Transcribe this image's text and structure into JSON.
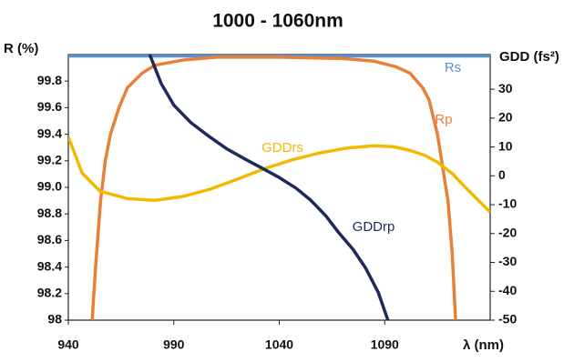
{
  "chart_data": {
    "type": "line",
    "title": "1000 - 1060nm",
    "x_label": "λ (nm)",
    "y_label": "R (%)",
    "y2_label": "GDD (fs²)",
    "xlim": [
      940,
      1140
    ],
    "xticks": [
      940,
      990,
      1040,
      1090
    ],
    "ylim": [
      98,
      100
    ],
    "yticks": [
      98,
      98.2,
      98.4,
      98.6,
      98.8,
      {
        "value": 99,
        "label": "99.0"
      },
      99.2,
      99.4,
      99.6,
      99.8
    ],
    "y2lim": [
      -50,
      42
    ],
    "y2ticks": [
      -50,
      -40,
      -30,
      -20,
      -10,
      0,
      10,
      20,
      30
    ],
    "series": [
      {
        "name": "Rs",
        "color": "#5b8fd0",
        "x": [
          940,
          990,
          1040,
          1090,
          1140
        ],
        "values": [
          99.99,
          99.99,
          99.99,
          99.99,
          99.99
        ]
      },
      {
        "name": "Rp",
        "color": "#e8803a",
        "x": [
          951.3,
          953,
          955.3,
          957.5,
          960,
          964,
          968,
          975,
          981,
          995,
          1010,
          1040,
          1070,
          1085,
          1095,
          1102,
          1108,
          1111,
          1115,
          1118,
          1120,
          1122,
          1123.6
        ],
        "values": [
          98,
          98.42,
          98.9,
          99.2,
          99.4,
          99.6,
          99.75,
          99.86,
          99.92,
          99.96,
          99.98,
          99.98,
          99.97,
          99.95,
          99.91,
          99.86,
          99.75,
          99.66,
          99.4,
          99.1,
          98.9,
          98.5,
          98
        ]
      },
      {
        "name": "GDDrs",
        "color": "#f2b900",
        "axis": "y2",
        "x": [
          940,
          946.5,
          955,
          968,
          981,
          994,
          1007,
          1020,
          1033,
          1046,
          1059,
          1072,
          1085,
          1094,
          1102,
          1109,
          1115,
          1122,
          1128,
          1134,
          1140
        ],
        "values": [
          13.5,
          1,
          -5.3,
          -7.9,
          -8.5,
          -7.2,
          -4.7,
          -1.2,
          2.5,
          5.5,
          7.9,
          9.6,
          10.4,
          10.1,
          8.8,
          7.1,
          4.7,
          0.8,
          -3.8,
          -8.2,
          -12.6
        ]
      },
      {
        "name": "GDDrp",
        "color": "#1f2a5c",
        "axis": "y2",
        "x": [
          978.6,
          984,
          990,
          998,
          1007,
          1015,
          1024,
          1032,
          1040,
          1048,
          1055,
          1062,
          1068,
          1075,
          1081,
          1087,
          1091.5
        ],
        "values": [
          42,
          32,
          24.5,
          18.5,
          13.5,
          9.4,
          5.7,
          2.6,
          -0.6,
          -4.3,
          -8.5,
          -13.8,
          -19.5,
          -25.5,
          -32,
          -40.5,
          -50
        ]
      }
    ]
  }
}
